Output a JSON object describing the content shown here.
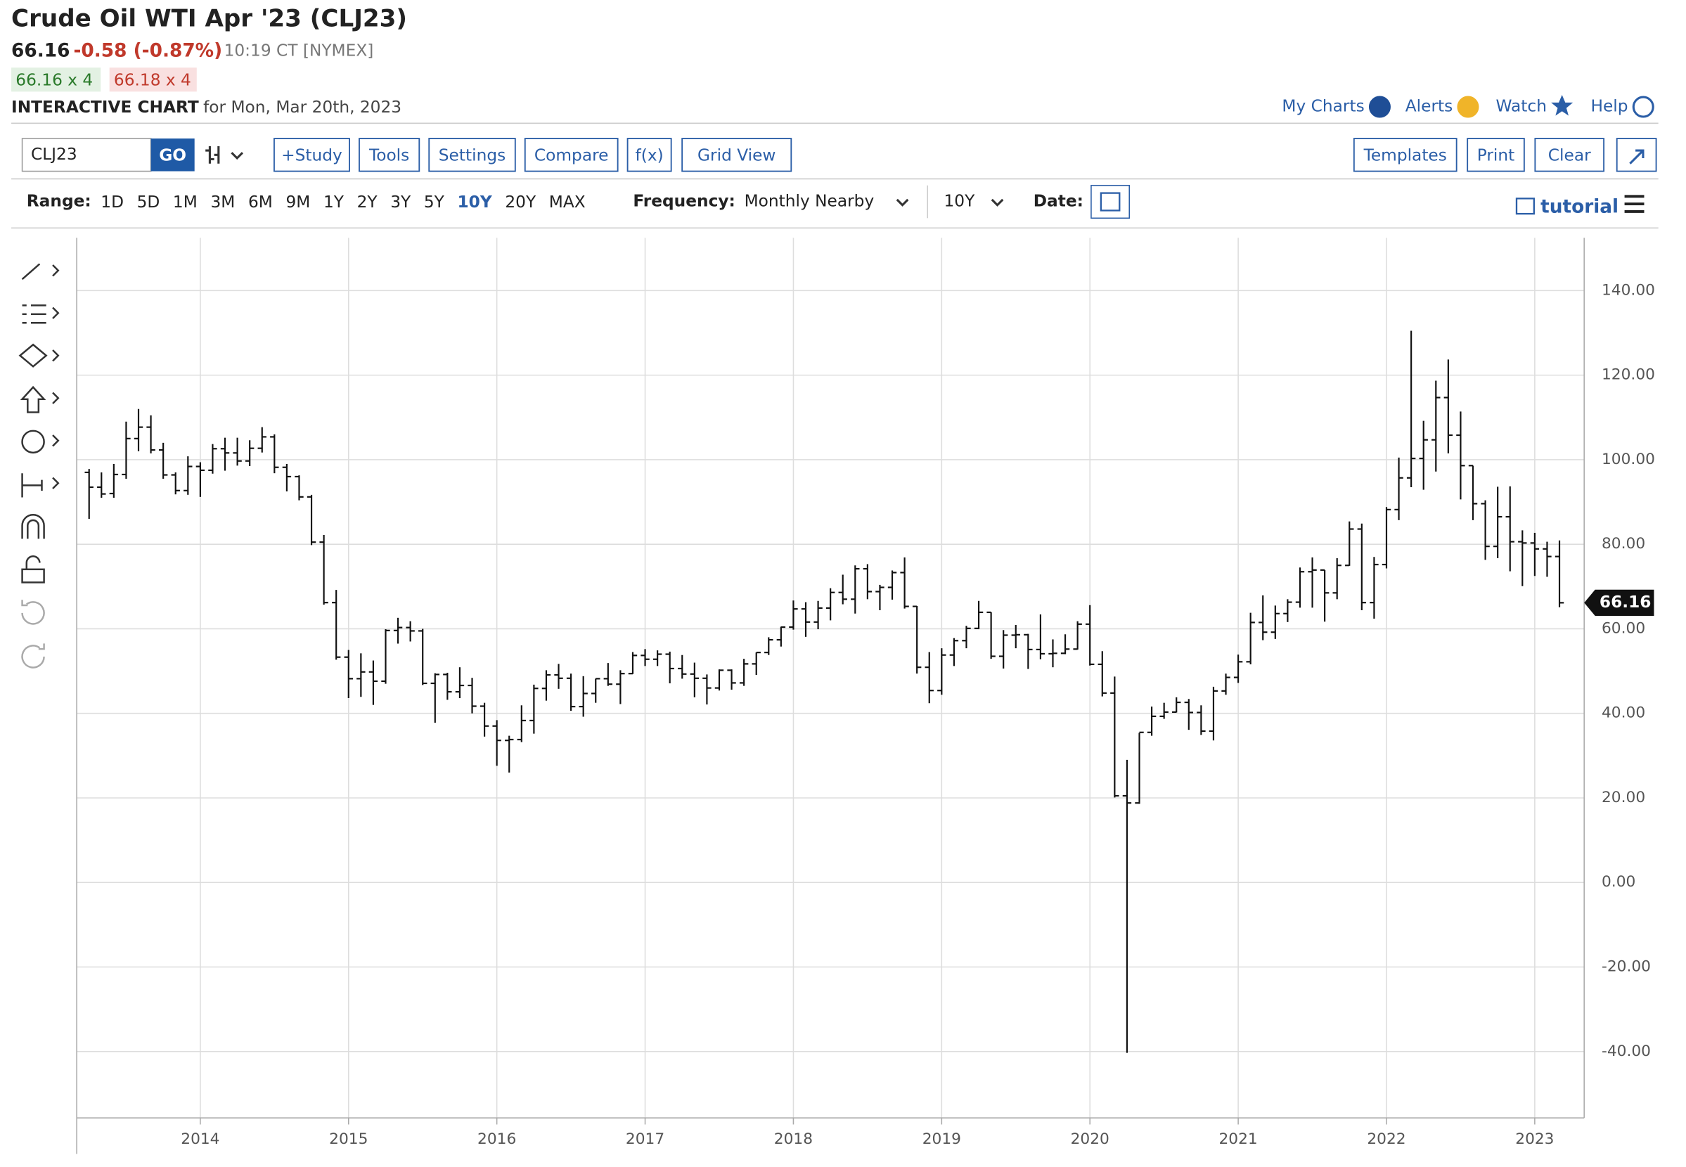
{
  "header": {
    "title": "Crude Oil WTI Apr '23 (CLJ23)",
    "last": "66.16",
    "change": "-0.58 (-0.87%)",
    "time": "10:19 CT [NYMEX]",
    "bid": "66.16 x 4",
    "ask": "66.18 x 4",
    "chart_label": "INTERACTIVE CHART",
    "chart_date": "for Mon, Mar 20th, 2023"
  },
  "links": [
    "My Charts",
    "Alerts",
    "Watch",
    "Help"
  ],
  "toolbar": {
    "symbol": "CLJ23",
    "go": "GO",
    "buttons": [
      "+Study",
      "Tools",
      "Settings",
      "Compare",
      "f(x)",
      "Grid View"
    ],
    "right_buttons": [
      "Templates",
      "Print",
      "Clear"
    ]
  },
  "range_bar": {
    "range_label": "Range:",
    "ranges": [
      "1D",
      "5D",
      "1M",
      "3M",
      "6M",
      "9M",
      "1Y",
      "2Y",
      "3Y",
      "5Y",
      "10Y",
      "20Y",
      "MAX"
    ],
    "selected": "10Y",
    "frequency_label": "Frequency:",
    "frequency": "Monthly Nearby",
    "period": "10Y",
    "date_label": "Date:",
    "tutorial": "tutorial"
  },
  "chart_data": {
    "type": "ohlc",
    "color": "#111111",
    "grid": true,
    "x": [
      "2013-04",
      "2013-05",
      "2013-06",
      "2013-07",
      "2013-08",
      "2013-09",
      "2013-10",
      "2013-11",
      "2013-12",
      "2014-01",
      "2014-02",
      "2014-03",
      "2014-04",
      "2014-05",
      "2014-06",
      "2014-07",
      "2014-08",
      "2014-09",
      "2014-10",
      "2014-11",
      "2014-12",
      "2015-01",
      "2015-02",
      "2015-03",
      "2015-04",
      "2015-05",
      "2015-06",
      "2015-07",
      "2015-08",
      "2015-09",
      "2015-10",
      "2015-11",
      "2015-12",
      "2016-01",
      "2016-02",
      "2016-03",
      "2016-04",
      "2016-05",
      "2016-06",
      "2016-07",
      "2016-08",
      "2016-09",
      "2016-10",
      "2016-11",
      "2016-12",
      "2017-01",
      "2017-02",
      "2017-03",
      "2017-04",
      "2017-05",
      "2017-06",
      "2017-07",
      "2017-08",
      "2017-09",
      "2017-10",
      "2017-11",
      "2017-12",
      "2018-01",
      "2018-02",
      "2018-03",
      "2018-04",
      "2018-05",
      "2018-06",
      "2018-07",
      "2018-08",
      "2018-09",
      "2018-10",
      "2018-11",
      "2018-12",
      "2019-01",
      "2019-02",
      "2019-03",
      "2019-04",
      "2019-05",
      "2019-06",
      "2019-07",
      "2019-08",
      "2019-09",
      "2019-10",
      "2019-11",
      "2019-12",
      "2020-01",
      "2020-02",
      "2020-03",
      "2020-04",
      "2020-05",
      "2020-06",
      "2020-07",
      "2020-08",
      "2020-09",
      "2020-10",
      "2020-11",
      "2020-12",
      "2021-01",
      "2021-02",
      "2021-03",
      "2021-04",
      "2021-05",
      "2021-06",
      "2021-07",
      "2021-08",
      "2021-09",
      "2021-10",
      "2021-11",
      "2021-12",
      "2022-01",
      "2022-02",
      "2022-03",
      "2022-04",
      "2022-05",
      "2022-06",
      "2022-07",
      "2022-08",
      "2022-09",
      "2022-10",
      "2022-11",
      "2022-12",
      "2023-01",
      "2023-02",
      "2023-03"
    ],
    "open": [
      97,
      93.5,
      92,
      96.5,
      105,
      107.7,
      102.3,
      96.4,
      92.7,
      98.4,
      97.5,
      102.6,
      101.6,
      99.7,
      102.7,
      105.4,
      98.2,
      96,
      91.2,
      80.5,
      66.2,
      53.3,
      48.2,
      49.8,
      47.6,
      59.6,
      60.3,
      59.5,
      47.1,
      49.2,
      45.1,
      46.6,
      41.7,
      37,
      33.6,
      33.8,
      38.3,
      45.9,
      49.1,
      48.3,
      41.6,
      44.7,
      48.2,
      46.9,
      49.4,
      53.7,
      52.8,
      54,
      50.6,
      49.3,
      48.3,
      46,
      50.2,
      47.2,
      51.7,
      54.4,
      57.4,
      60.4,
      64.7,
      61.6,
      64.9,
      68.6,
      67,
      74.2,
      68.8,
      69.8,
      73.3,
      65.3,
      50.9,
      45.4,
      53.8,
      57.2,
      60.1,
      63.9,
      53.5,
      58.5,
      58.6,
      55.1,
      54.1,
      54.2,
      55.2,
      61.1,
      51.6,
      44.8,
      20.5,
      18.8,
      35.5,
      39.3,
      40.3,
      42.6,
      40.2,
      35.8,
      45.3,
      48.5,
      52.2,
      61.5,
      59.2,
      63.6,
      66.3,
      73.5,
      73.9,
      68.5,
      75,
      83.6,
      66.2,
      75.2,
      88.2,
      95.7,
      100.3,
      104.7,
      114.7,
      105.8,
      98.6,
      89.6,
      79.5,
      86.5,
      80.6,
      80.3,
      78.9,
      77.1
    ],
    "high": [
      97.8,
      97,
      99,
      109,
      112,
      110.5,
      104,
      97,
      100.8,
      99.4,
      103.7,
      105.2,
      105.2,
      104.6,
      107.7,
      106,
      99,
      96.3,
      91.7,
      82.2,
      69.2,
      55,
      54.2,
      52.5,
      59.9,
      62.6,
      61.8,
      60,
      49.5,
      49.6,
      50.9,
      48.4,
      42.5,
      38.4,
      34.7,
      41.9,
      46.8,
      50.2,
      51.7,
      49.4,
      48.8,
      48.2,
      51.9,
      50.2,
      54.5,
      55.2,
      54.9,
      54.6,
      53.8,
      52,
      49.2,
      50.4,
      50.4,
      52.9,
      54.4,
      58,
      60.5,
      66.7,
      66.3,
      66.6,
      69.6,
      72.8,
      75,
      75.3,
      70.4,
      73.8,
      76.9,
      65.4,
      54.5,
      55.4,
      57.8,
      60.7,
      66.6,
      63.9,
      59.7,
      60.9,
      58.8,
      63.4,
      57.5,
      58.7,
      61.8,
      65.6,
      54.7,
      48.7,
      29,
      35.4,
      41.6,
      42.5,
      43.8,
      43.4,
      41.9,
      46.3,
      49.4,
      53.9,
      63.8,
      67.9,
      65.5,
      67,
      74.5,
      76.9,
      73.9,
      76.7,
      85.4,
      84.9,
      77,
      88.8,
      100.5,
      130.5,
      109.2,
      118.7,
      123.7,
      111.4,
      98.6,
      90.4,
      93.6,
      93.7,
      83.3,
      82.7,
      80.6,
      80.9
    ],
    "low": [
      86,
      91,
      91,
      95.5,
      102,
      101.5,
      95.5,
      91.8,
      91.7,
      91.2,
      96.7,
      97.4,
      98.6,
      98.5,
      101.7,
      96.8,
      92.5,
      90.4,
      79.8,
      65.7,
      52.7,
      43.6,
      43.9,
      42,
      47,
      56.5,
      57,
      46.7,
      37.8,
      43.2,
      43.6,
      40,
      34.5,
      27.6,
      26,
      33.2,
      35.2,
      43,
      45.8,
      40.6,
      39.2,
      42.5,
      46.5,
      42.2,
      49.3,
      51.2,
      51.2,
      47.1,
      48.2,
      43.8,
      42.1,
      45.4,
      45.6,
      46.5,
      49.1,
      53.8,
      55.8,
      59.8,
      58.1,
      59.9,
      62,
      65.8,
      63.6,
      67,
      64.4,
      66.9,
      64.8,
      49.4,
      42.4,
      44.4,
      51.2,
      55.4,
      59.9,
      52.9,
      50.6,
      55.4,
      50.5,
      52.8,
      50.9,
      54,
      55.1,
      51.3,
      44,
      20.1,
      -40.3,
      18.6,
      34.7,
      38.7,
      40.2,
      36.1,
      34.9,
      33.6,
      44.4,
      47.2,
      51.6,
      57.3,
      57.6,
      61.6,
      65,
      65,
      61.7,
      67,
      74.9,
      64.4,
      62.4,
      74.3,
      85.7,
      93.5,
      92.9,
      97.2,
      101.5,
      90.6,
      85.7,
      76.3,
      76.7,
      73.6,
      70.1,
      72.5,
      72.3,
      65.1
    ],
    "close": [
      93.5,
      91.9,
      96.5,
      105,
      107.7,
      102.3,
      96.4,
      92.7,
      98.4,
      97.5,
      102.6,
      101.6,
      99.7,
      102.7,
      105.4,
      98.2,
      96,
      91.2,
      80.5,
      66.2,
      53.3,
      48.2,
      49.8,
      47.6,
      59.6,
      60.3,
      59.5,
      47.1,
      49.2,
      45.1,
      46.6,
      41.7,
      37,
      33.6,
      33.8,
      38.3,
      45.9,
      49.1,
      48.3,
      41.6,
      44.7,
      48.2,
      46.9,
      49.4,
      53.7,
      52.8,
      54,
      50.6,
      49.3,
      48.3,
      46,
      50.2,
      47.2,
      51.7,
      54.4,
      57.4,
      60.4,
      64.7,
      61.6,
      64.9,
      68.6,
      67,
      74.2,
      68.8,
      69.8,
      73.3,
      65.3,
      50.9,
      45.4,
      53.8,
      57.2,
      60.1,
      63.9,
      53.5,
      58.5,
      58.6,
      55.1,
      54.1,
      54.2,
      55.2,
      61.1,
      51.6,
      44.8,
      20.5,
      18.8,
      35.5,
      39.3,
      40.3,
      42.6,
      40.2,
      35.8,
      45.3,
      48.5,
      52.2,
      61.5,
      59.2,
      63.6,
      66.3,
      73.5,
      73.9,
      68.5,
      75,
      83.6,
      66.2,
      75.2,
      88.2,
      95.7,
      100.3,
      104.7,
      114.7,
      105.8,
      98.6,
      89.6,
      79.5,
      86.5,
      80.6,
      80.3,
      78.9,
      77.1,
      66.16
    ],
    "xlim": [
      "2013-03",
      "2023-05"
    ],
    "xticks": [
      2014,
      2015,
      2016,
      2017,
      2018,
      2019,
      2020,
      2021,
      2022,
      2023
    ],
    "ylim": [
      -55.7,
      152.5
    ],
    "yticks": [
      {
        "value": -40,
        "label": "-40.00"
      },
      {
        "value": -20,
        "label": "-20.00"
      },
      {
        "value": 0,
        "label": "0.00"
      },
      {
        "value": 20,
        "label": "20.00"
      },
      {
        "value": 40,
        "label": "40.00"
      },
      {
        "value": 60,
        "label": "60.00"
      },
      {
        "value": 80,
        "label": "80.00"
      },
      {
        "value": 100,
        "label": "100.00"
      },
      {
        "value": 120,
        "label": "120.00"
      },
      {
        "value": 140,
        "label": "140.00"
      }
    ]
  }
}
